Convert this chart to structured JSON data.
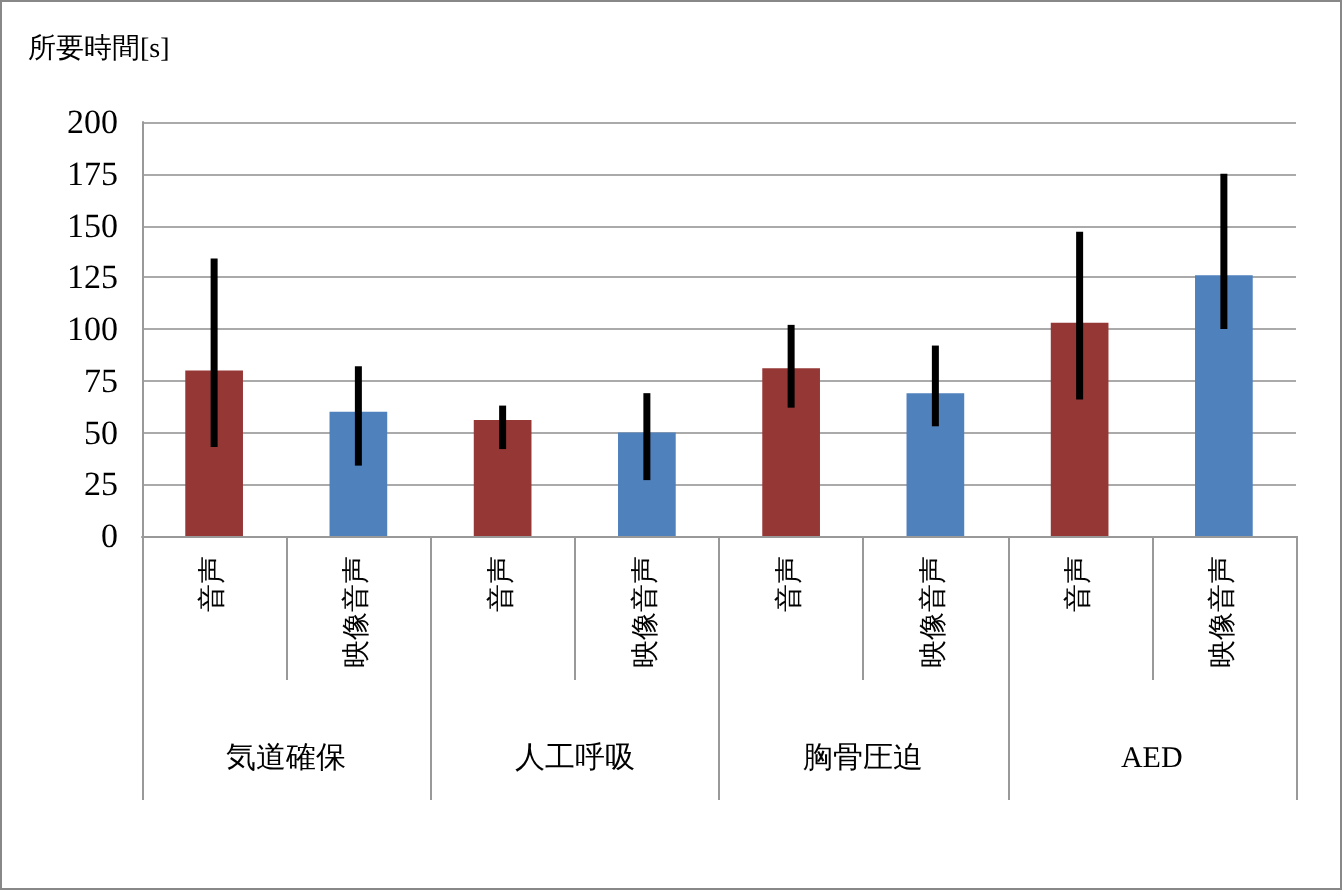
{
  "chart_data": {
    "type": "bar",
    "ylabel": "所要時間[s]",
    "categories": [
      "音声",
      "映像音声",
      "音声",
      "映像音声",
      "音声",
      "映像音声",
      "音声",
      "映像音声"
    ],
    "annotations": [
      "気道確保",
      "人工呼吸",
      "胸骨圧迫",
      "AED"
    ],
    "values": [
      80,
      60,
      56,
      50,
      81,
      69,
      103,
      126
    ],
    "colors": [
      "#953735",
      "#4f81bd",
      "#953735",
      "#4f81bd",
      "#953735",
      "#4f81bd",
      "#953735",
      "#4f81bd"
    ],
    "errors": [
      [
        43,
        134
      ],
      [
        34,
        82
      ],
      [
        42,
        63
      ],
      [
        27,
        69
      ],
      [
        62,
        102
      ],
      [
        53,
        92
      ],
      [
        66,
        147
      ],
      [
        100,
        175
      ]
    ],
    "ylim": [
      0,
      200
    ],
    "yticks": [
      0,
      25,
      50,
      75,
      100,
      125,
      150,
      175,
      200
    ],
    "grid": "y"
  }
}
